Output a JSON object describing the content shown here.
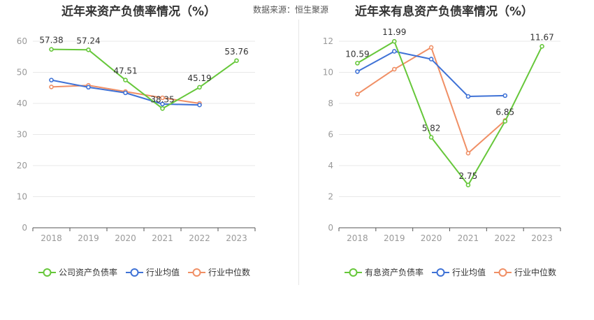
{
  "source": {
    "label": "数据来源：",
    "value": "恒生聚源"
  },
  "colors": {
    "main": "#66c73a",
    "industry_avg": "#3f72d6",
    "industry_median": "#f08f65",
    "axis": "#555555",
    "grid": "#e8e8e8",
    "tick_text": "#999999"
  },
  "chart_data": [
    {
      "type": "line",
      "title": "近年来资产负债率情况（%）",
      "categories": [
        "2018",
        "2019",
        "2020",
        "2021",
        "2022",
        "2023"
      ],
      "ylim": [
        0,
        60
      ],
      "yticks": [
        0,
        10,
        20,
        30,
        40,
        50,
        60
      ],
      "series": [
        {
          "name": "公司资产负债率",
          "values": [
            57.38,
            57.24,
            47.51,
            38.35,
            45.19,
            53.76
          ],
          "labels": [
            "57.38",
            "57.24",
            "47.51",
            "38.35",
            "45.19",
            "53.76"
          ]
        },
        {
          "name": "行业均值",
          "values": [
            47.5,
            45.2,
            43.4,
            39.8,
            39.5,
            null
          ]
        },
        {
          "name": "行业中位数",
          "values": [
            45.3,
            45.8,
            43.8,
            41.8,
            40.0,
            null
          ]
        }
      ],
      "legend": [
        "公司资产负债率",
        "行业均值",
        "行业中位数"
      ]
    },
    {
      "type": "line",
      "title": "近年来有息资产负债率情况（%）",
      "categories": [
        "2018",
        "2019",
        "2020",
        "2021",
        "2022",
        "2023"
      ],
      "ylim": [
        0,
        12
      ],
      "yticks": [
        0,
        2,
        4,
        6,
        8,
        10,
        12
      ],
      "series": [
        {
          "name": "有息资产负债率",
          "values": [
            10.59,
            11.99,
            5.82,
            2.75,
            6.85,
            11.67
          ],
          "labels": [
            "10.59",
            "11.99",
            "5.82",
            "2.75",
            "6.85",
            "11.67"
          ]
        },
        {
          "name": "行业均值",
          "values": [
            10.05,
            11.35,
            10.85,
            8.45,
            8.5,
            null
          ]
        },
        {
          "name": "行业中位数",
          "values": [
            8.6,
            10.2,
            11.6,
            4.8,
            6.9,
            null
          ]
        }
      ],
      "legend": [
        "有息资产负债率",
        "行业均值",
        "行业中位数"
      ]
    }
  ]
}
